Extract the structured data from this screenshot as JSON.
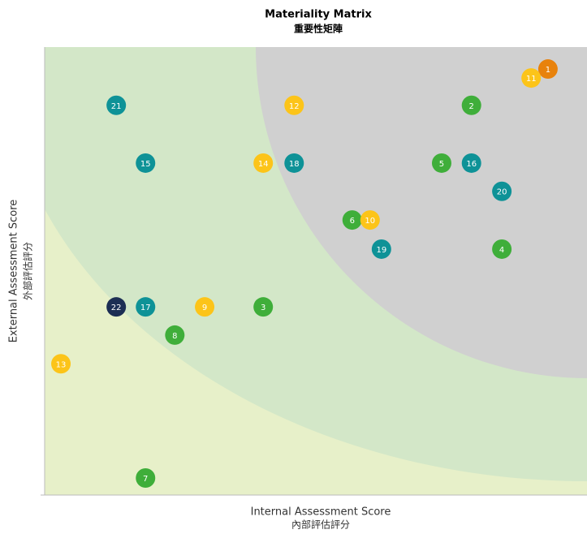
{
  "chart_data": {
    "type": "scatter",
    "title": "Materiality Matrix",
    "subtitle": "重要性矩陣",
    "xlabel": "Internal Assessment Score",
    "xlabel_sub": "內部評估評分",
    "ylabel": "External Assessment Score",
    "ylabel_sub": "外部評估評分",
    "xlim": [
      0,
      10
    ],
    "ylim": [
      0,
      10
    ],
    "points": [
      {
        "label": "1",
        "x": 9.28,
        "y": 9.51,
        "color": "#e8820c"
      },
      {
        "label": "11",
        "x": 8.97,
        "y": 9.31,
        "color": "#fcc419"
      },
      {
        "label": "21",
        "x": 1.32,
        "y": 8.7,
        "color": "#0e9297"
      },
      {
        "label": "12",
        "x": 4.6,
        "y": 8.7,
        "color": "#fcc419"
      },
      {
        "label": "2",
        "x": 7.87,
        "y": 8.7,
        "color": "#3fae3a"
      },
      {
        "label": "15",
        "x": 1.86,
        "y": 7.41,
        "color": "#0e9297"
      },
      {
        "label": "14",
        "x": 4.03,
        "y": 7.41,
        "color": "#fcc419"
      },
      {
        "label": "18",
        "x": 4.6,
        "y": 7.41,
        "color": "#0e9297"
      },
      {
        "label": "5",
        "x": 7.32,
        "y": 7.41,
        "color": "#3fae3a"
      },
      {
        "label": "16",
        "x": 7.87,
        "y": 7.41,
        "color": "#0e9297"
      },
      {
        "label": "20",
        "x": 8.43,
        "y": 6.78,
        "color": "#0e9297"
      },
      {
        "label": "6",
        "x": 5.67,
        "y": 6.14,
        "color": "#3fae3a"
      },
      {
        "label": "10",
        "x": 6.0,
        "y": 6.14,
        "color": "#fcc419"
      },
      {
        "label": "19",
        "x": 6.21,
        "y": 5.49,
        "color": "#0e9297"
      },
      {
        "label": "4",
        "x": 8.43,
        "y": 5.49,
        "color": "#3fae3a"
      },
      {
        "label": "22",
        "x": 1.32,
        "y": 4.2,
        "color": "#1c2e54"
      },
      {
        "label": "17",
        "x": 1.86,
        "y": 4.2,
        "color": "#0e9297"
      },
      {
        "label": "9",
        "x": 2.95,
        "y": 4.2,
        "color": "#fcc419"
      },
      {
        "label": "3",
        "x": 4.03,
        "y": 4.2,
        "color": "#3fae3a"
      },
      {
        "label": "8",
        "x": 2.4,
        "y": 3.57,
        "color": "#3fae3a"
      },
      {
        "label": "13",
        "x": 0.3,
        "y": 2.93,
        "color": "#fcc419"
      },
      {
        "label": "7",
        "x": 1.86,
        "y": 0.38,
        "color": "#3fae3a"
      }
    ]
  }
}
